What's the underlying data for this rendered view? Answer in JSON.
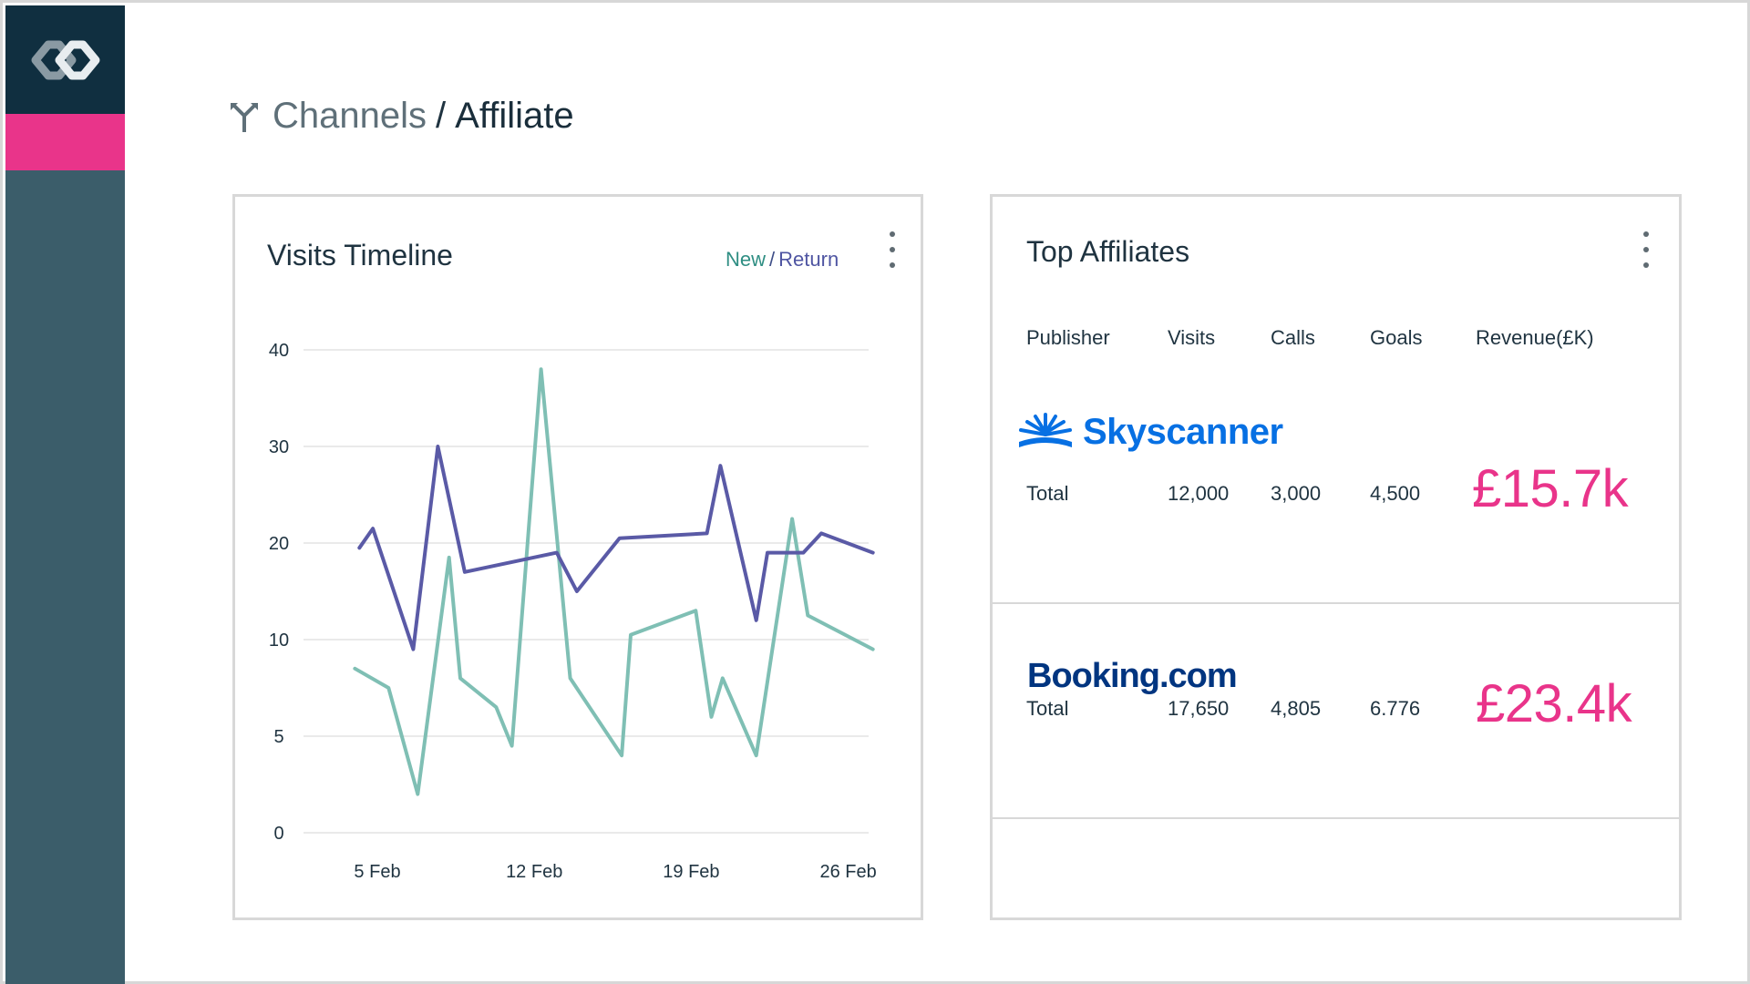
{
  "breadcrumb": {
    "parent": "Channels",
    "separator": "/",
    "current": "Affiliate"
  },
  "visits_card": {
    "title": "Visits Timeline",
    "legend_new": "New",
    "legend_sep": "/",
    "legend_return": "Return"
  },
  "chart_data": {
    "type": "line",
    "title": "Visits Timeline",
    "xlabel": "",
    "ylabel": "",
    "y_ticks": [
      0,
      5,
      10,
      20,
      30,
      40
    ],
    "x_ticks": [
      "5 Feb",
      "12 Feb",
      "19 Feb",
      "26 Feb"
    ],
    "grid": true,
    "legend": "top-right",
    "colors": {
      "new": "#7fbfb4",
      "return": "#5a5aa6"
    },
    "series": [
      {
        "name": "New",
        "points": [
          [
            4.0,
            8.5
          ],
          [
            5.5,
            7.5
          ],
          [
            6.8,
            2.0
          ],
          [
            8.2,
            18.5
          ],
          [
            8.7,
            8.0
          ],
          [
            10.3,
            6.5
          ],
          [
            11.0,
            4.5
          ],
          [
            12.3,
            38.0
          ],
          [
            13.6,
            8.0
          ],
          [
            15.9,
            4.0
          ],
          [
            16.3,
            10.5
          ],
          [
            19.2,
            13.0
          ],
          [
            19.9,
            6.0
          ],
          [
            20.4,
            8.0
          ],
          [
            21.9,
            4.0
          ],
          [
            23.5,
            22.5
          ],
          [
            24.2,
            12.5
          ],
          [
            27.1,
            9.5
          ]
        ]
      },
      {
        "name": "Return",
        "points": [
          [
            4.2,
            19.5
          ],
          [
            4.8,
            21.5
          ],
          [
            6.6,
            9.5
          ],
          [
            7.7,
            30.0
          ],
          [
            8.9,
            17.0
          ],
          [
            13.0,
            19.0
          ],
          [
            13.9,
            15.0
          ],
          [
            15.8,
            20.5
          ],
          [
            19.7,
            21.0
          ],
          [
            20.3,
            28.0
          ],
          [
            21.9,
            12.0
          ],
          [
            22.4,
            19.0
          ],
          [
            24.0,
            19.0
          ],
          [
            24.8,
            21.0
          ],
          [
            27.1,
            19.0
          ]
        ]
      }
    ]
  },
  "affiliates_card": {
    "title": "Top Affiliates",
    "columns": [
      "Publisher",
      "Visits",
      "Calls",
      "Goals",
      "Revenue(£K)"
    ],
    "rows": [
      {
        "publisher": "Skyscanner",
        "total_label": "Total",
        "visits": "12,000",
        "calls": "3,000",
        "goals": "4,500",
        "revenue": "£15.7k"
      },
      {
        "publisher": "Booking.com",
        "total_label": "Total",
        "visits": "17,650",
        "calls": "4,805",
        "goals": "6.776",
        "revenue": "£23.4k"
      }
    ]
  },
  "colors": {
    "sidebar": "#3b5d6a",
    "sidebar_logo_bg": "#102f40",
    "accent": "#e9348a",
    "new_series": "#7fbfb4",
    "return_series": "#5a5aa6"
  },
  "icons": {
    "app_logo": "infinity-logo-icon",
    "breadcrumb": "channels-fork-icon",
    "menu": "kebab-menu-icon"
  }
}
